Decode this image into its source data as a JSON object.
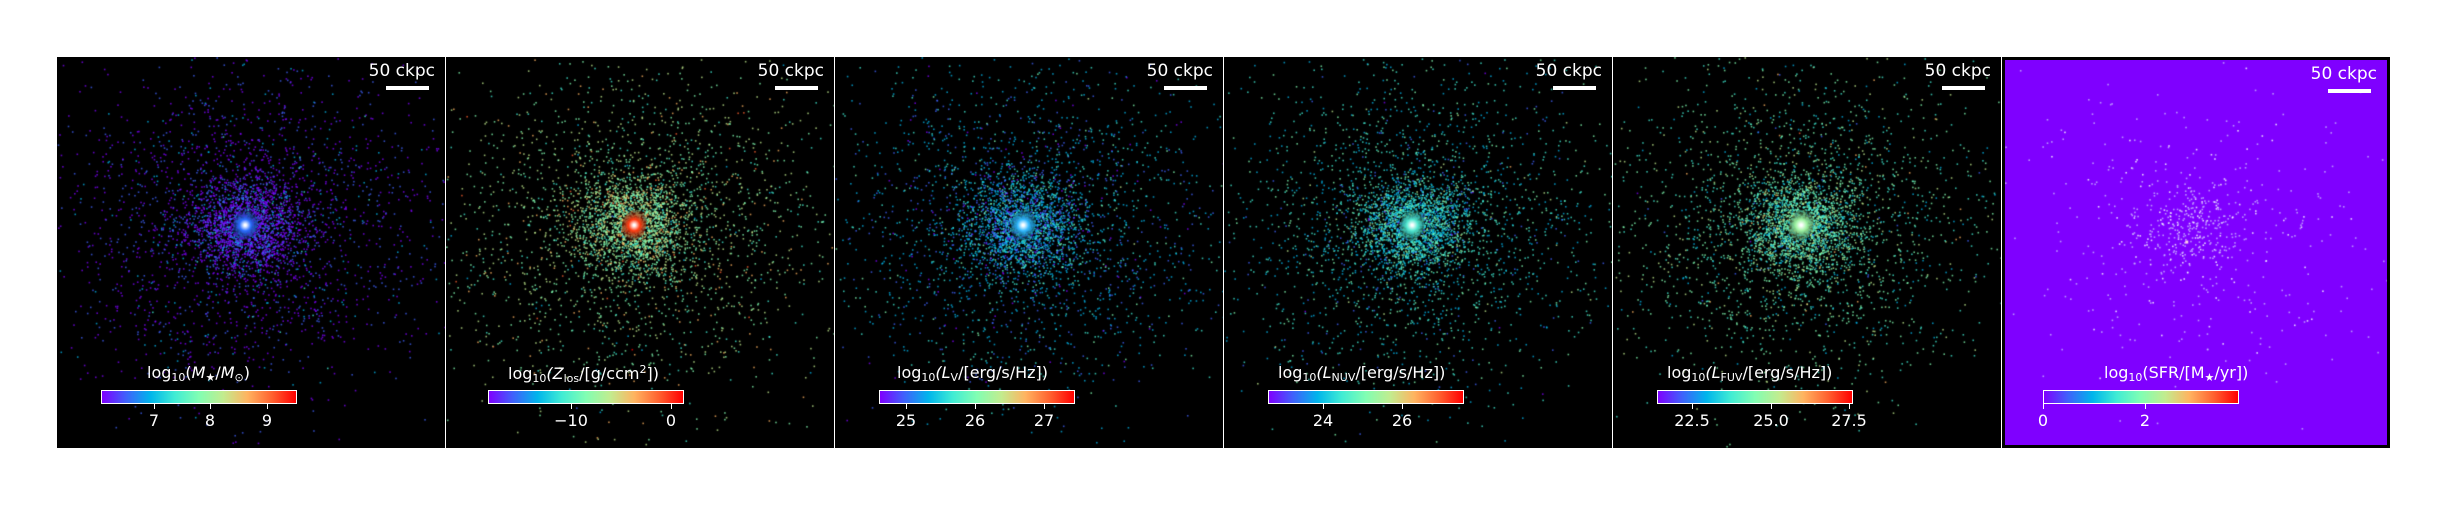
{
  "scale_label": "50 ckpc",
  "colormap": [
    "#7f00ff",
    "#3f62fb",
    "#00b5eb",
    "#40ecd4",
    "#81feb3",
    "#c2ec8f",
    "#ffb360",
    "#ff6230",
    "#ff0000"
  ],
  "panels": [
    {
      "title_parts": [
        "log",
        "10",
        "(",
        "M",
        "★",
        "/",
        "M",
        "⊙",
        ")"
      ],
      "ticks": [
        "7",
        "8",
        "9"
      ],
      "background": "#000000",
      "core_color": "#2a6fff"
    },
    {
      "title_parts": [
        "log",
        "10",
        "(Z",
        "los",
        "/[g/ccm",
        "2",
        "])"
      ],
      "ticks": [
        "−10",
        "0"
      ],
      "background": "#000000",
      "core_color": "#ff3a10"
    },
    {
      "title_parts": [
        "log",
        "10",
        "(L",
        "V",
        "/[erg/s/Hz])"
      ],
      "ticks": [
        "25",
        "26",
        "27"
      ],
      "background": "#000000",
      "core_color": "#30b8ff"
    },
    {
      "title_parts": [
        "log",
        "10",
        "(L",
        "NUV",
        "/[erg/s/Hz])"
      ],
      "ticks": [
        "24",
        "26"
      ],
      "background": "#000000",
      "core_color": "#50e8d0"
    },
    {
      "title_parts": [
        "log",
        "10",
        "(L",
        "FUV",
        "/[erg/s/Hz])"
      ],
      "ticks": [
        "22.5",
        "25.0",
        "27.5"
      ],
      "background": "#000000",
      "core_color": "#9cf2a0"
    },
    {
      "title_parts": [
        "log",
        "10",
        "(SFR/[M",
        "★",
        "/yr])"
      ],
      "ticks": [
        "0",
        "2"
      ],
      "background": "#7f00ff",
      "core_color": "#ffe0a0"
    }
  ]
}
